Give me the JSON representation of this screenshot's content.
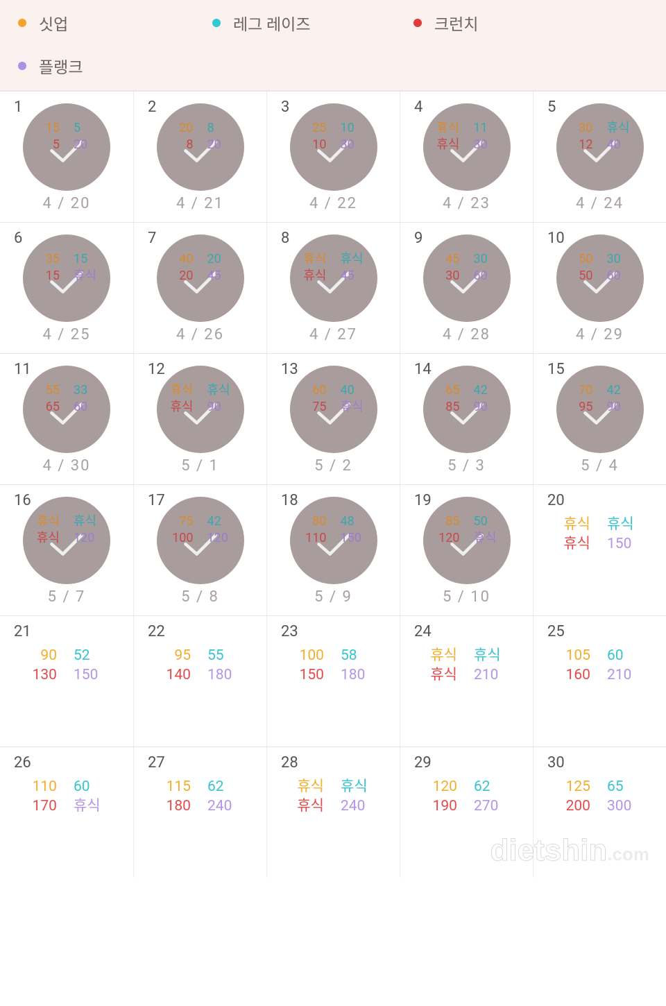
{
  "legend": {
    "background_color": "#fbf1ee",
    "items": [
      {
        "label": "싯업",
        "color": "#f0a22c"
      },
      {
        "label": "레그 레이즈",
        "color": "#2ecad6"
      },
      {
        "label": "크런치",
        "color": "#e23a3a"
      },
      {
        "label": "플랭크",
        "color": "#b08fe6"
      }
    ]
  },
  "colors": {
    "situp": "#d98a2e",
    "legraise": "#3aa7b0",
    "crunch": "#c64a4a",
    "plank": "#9b7dce",
    "situp_plain": "#f4ae2f",
    "legraise_plain": "#38c5d0",
    "crunch_plain": "#e34d4d",
    "plank_plain": "#b496e6",
    "plate_bg": "#a99c9c",
    "check": "#efefef",
    "date": "#a9a19e"
  },
  "days": [
    {
      "n": "1",
      "date": "4 / 20",
      "done": true,
      "tl": "15",
      "tr": "5",
      "bl": "5",
      "br": "20"
    },
    {
      "n": "2",
      "date": "4 / 21",
      "done": true,
      "tl": "20",
      "tr": "8",
      "bl": "8",
      "br": "20"
    },
    {
      "n": "3",
      "date": "4 / 22",
      "done": true,
      "tl": "25",
      "tr": "10",
      "bl": "10",
      "br": "30"
    },
    {
      "n": "4",
      "date": "4 / 23",
      "done": true,
      "tl": "휴식",
      "tr": "11",
      "bl": "휴식",
      "br": "30"
    },
    {
      "n": "5",
      "date": "4 / 24",
      "done": true,
      "tl": "30",
      "tr": "휴식",
      "bl": "12",
      "br": "40"
    },
    {
      "n": "6",
      "date": "4 / 25",
      "done": true,
      "tl": "35",
      "tr": "15",
      "bl": "15",
      "br": "휴식"
    },
    {
      "n": "7",
      "date": "4 / 26",
      "done": true,
      "tl": "40",
      "tr": "20",
      "bl": "20",
      "br": "45"
    },
    {
      "n": "8",
      "date": "4 / 27",
      "done": true,
      "tl": "휴식",
      "tr": "휴식",
      "bl": "휴식",
      "br": "45"
    },
    {
      "n": "9",
      "date": "4 / 28",
      "done": true,
      "tl": "45",
      "tr": "30",
      "bl": "30",
      "br": "60"
    },
    {
      "n": "10",
      "date": "4 / 29",
      "done": true,
      "tl": "50",
      "tr": "30",
      "bl": "50",
      "br": "60"
    },
    {
      "n": "11",
      "date": "4 / 30",
      "done": true,
      "tl": "55",
      "tr": "33",
      "bl": "65",
      "br": "60"
    },
    {
      "n": "12",
      "date": "5 / 1",
      "done": true,
      "tl": "휴식",
      "tr": "휴식",
      "bl": "휴식",
      "br": "90"
    },
    {
      "n": "13",
      "date": "5 / 2",
      "done": true,
      "tl": "60",
      "tr": "40",
      "bl": "75",
      "br": "휴식"
    },
    {
      "n": "14",
      "date": "5 / 3",
      "done": true,
      "tl": "65",
      "tr": "42",
      "bl": "85",
      "br": "90"
    },
    {
      "n": "15",
      "date": "5 / 4",
      "done": true,
      "tl": "70",
      "tr": "42",
      "bl": "95",
      "br": "90"
    },
    {
      "n": "16",
      "date": "5 / 7",
      "done": true,
      "tl": "휴식",
      "tr": "휴식",
      "bl": "휴식",
      "br": "120"
    },
    {
      "n": "17",
      "date": "5 / 8",
      "done": true,
      "tl": "75",
      "tr": "42",
      "bl": "100",
      "br": "120"
    },
    {
      "n": "18",
      "date": "5 / 9",
      "done": true,
      "tl": "80",
      "tr": "48",
      "bl": "110",
      "br": "150"
    },
    {
      "n": "19",
      "date": "5 / 10",
      "done": true,
      "tl": "85",
      "tr": "50",
      "bl": "120",
      "br": "휴식"
    },
    {
      "n": "20",
      "date": "",
      "done": false,
      "tl": "휴식",
      "tr": "휴식",
      "bl": "휴식",
      "br": "150"
    },
    {
      "n": "21",
      "date": "",
      "done": false,
      "tl": "90",
      "tr": "52",
      "bl": "130",
      "br": "150"
    },
    {
      "n": "22",
      "date": "",
      "done": false,
      "tl": "95",
      "tr": "55",
      "bl": "140",
      "br": "180"
    },
    {
      "n": "23",
      "date": "",
      "done": false,
      "tl": "100",
      "tr": "58",
      "bl": "150",
      "br": "180"
    },
    {
      "n": "24",
      "date": "",
      "done": false,
      "tl": "휴식",
      "tr": "휴식",
      "bl": "휴식",
      "br": "210"
    },
    {
      "n": "25",
      "date": "",
      "done": false,
      "tl": "105",
      "tr": "60",
      "bl": "160",
      "br": "210"
    },
    {
      "n": "26",
      "date": "",
      "done": false,
      "tl": "110",
      "tr": "60",
      "bl": "170",
      "br": "휴식"
    },
    {
      "n": "27",
      "date": "",
      "done": false,
      "tl": "115",
      "tr": "62",
      "bl": "180",
      "br": "240"
    },
    {
      "n": "28",
      "date": "",
      "done": false,
      "tl": "휴식",
      "tr": "휴식",
      "bl": "휴식",
      "br": "240"
    },
    {
      "n": "29",
      "date": "",
      "done": false,
      "tl": "120",
      "tr": "62",
      "bl": "190",
      "br": "270"
    },
    {
      "n": "30",
      "date": "",
      "done": false,
      "tl": "125",
      "tr": "65",
      "bl": "200",
      "br": "300"
    }
  ],
  "watermark": {
    "a": "diet",
    "b": "shin",
    "c": ".com"
  }
}
